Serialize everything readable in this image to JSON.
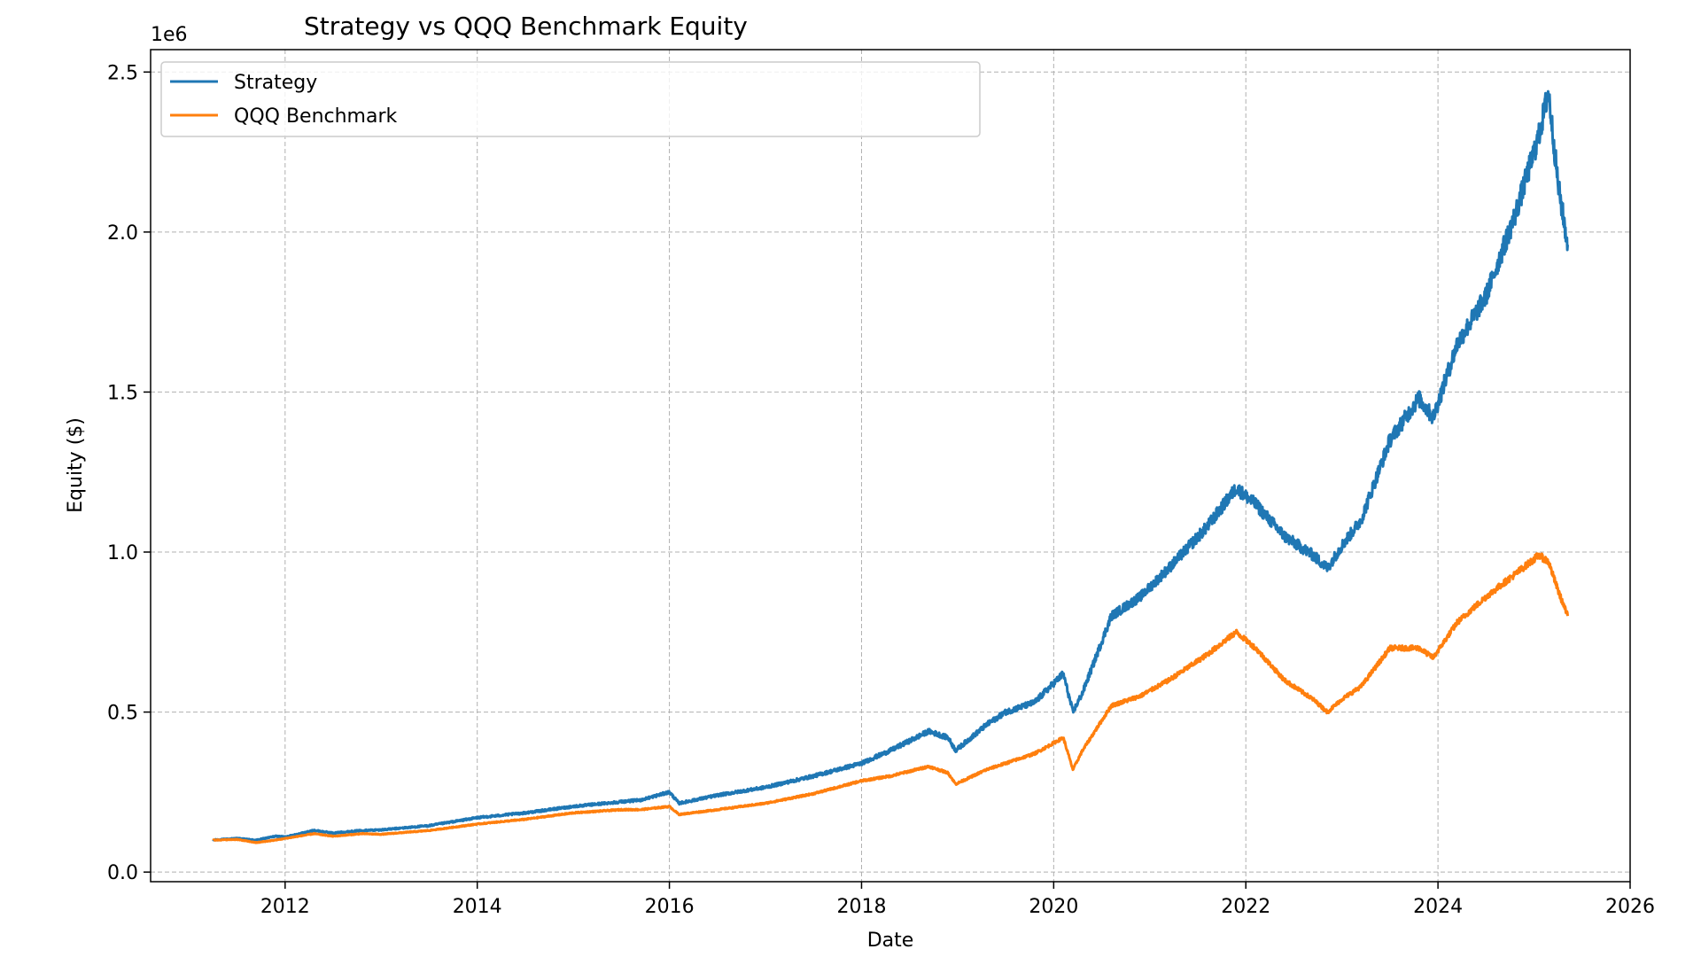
{
  "chart_data": {
    "type": "line",
    "title": "Strategy vs QQQ Benchmark Equity",
    "xlabel": "Date",
    "ylabel": "Equity ($)",
    "y_offset_text": "1e6",
    "xlim": [
      2010.6,
      2026.0
    ],
    "ylim": [
      -0.03,
      2.57
    ],
    "y_unit_scale": 1000000,
    "xticks": [
      2012,
      2014,
      2016,
      2018,
      2020,
      2022,
      2024,
      2026
    ],
    "xtick_labels": [
      "2012",
      "2014",
      "2016",
      "2018",
      "2020",
      "2022",
      "2024",
      "2026"
    ],
    "yticks": [
      0.0,
      0.5,
      1.0,
      1.5,
      2.0,
      2.5
    ],
    "ytick_labels": [
      "0.0",
      "0.5",
      "1.0",
      "1.5",
      "2.0",
      "2.5"
    ],
    "grid": true,
    "legend_position": "upper-left",
    "series": [
      {
        "name": "Strategy",
        "color": "#1f77b4",
        "points": [
          [
            2011.25,
            0.1
          ],
          [
            2011.5,
            0.105
          ],
          [
            2011.7,
            0.1
          ],
          [
            2011.9,
            0.112
          ],
          [
            2012.0,
            0.11
          ],
          [
            2012.3,
            0.13
          ],
          [
            2012.5,
            0.122
          ],
          [
            2012.8,
            0.13
          ],
          [
            2013.0,
            0.132
          ],
          [
            2013.5,
            0.145
          ],
          [
            2014.0,
            0.17
          ],
          [
            2014.5,
            0.185
          ],
          [
            2015.0,
            0.205
          ],
          [
            2015.5,
            0.22
          ],
          [
            2015.7,
            0.225
          ],
          [
            2016.0,
            0.25
          ],
          [
            2016.1,
            0.215
          ],
          [
            2016.5,
            0.24
          ],
          [
            2017.0,
            0.265
          ],
          [
            2017.5,
            0.3
          ],
          [
            2018.0,
            0.34
          ],
          [
            2018.3,
            0.38
          ],
          [
            2018.7,
            0.44
          ],
          [
            2018.9,
            0.42
          ],
          [
            2018.98,
            0.38
          ],
          [
            2019.3,
            0.46
          ],
          [
            2019.5,
            0.5
          ],
          [
            2019.8,
            0.53
          ],
          [
            2020.1,
            0.62
          ],
          [
            2020.2,
            0.5
          ],
          [
            2020.3,
            0.56
          ],
          [
            2020.6,
            0.8
          ],
          [
            2020.9,
            0.86
          ],
          [
            2021.2,
            0.95
          ],
          [
            2021.6,
            1.08
          ],
          [
            2021.9,
            1.2
          ],
          [
            2022.1,
            1.15
          ],
          [
            2022.4,
            1.05
          ],
          [
            2022.7,
            0.99
          ],
          [
            2022.85,
            0.95
          ],
          [
            2023.0,
            1.02
          ],
          [
            2023.2,
            1.1
          ],
          [
            2023.5,
            1.35
          ],
          [
            2023.8,
            1.48
          ],
          [
            2023.95,
            1.42
          ],
          [
            2024.2,
            1.65
          ],
          [
            2024.5,
            1.8
          ],
          [
            2024.8,
            2.05
          ],
          [
            2025.05,
            2.3
          ],
          [
            2025.15,
            2.44
          ],
          [
            2025.25,
            2.15
          ],
          [
            2025.35,
            1.96
          ]
        ]
      },
      {
        "name": "QQQ Benchmark",
        "color": "#ff7f0e",
        "points": [
          [
            2011.25,
            0.1
          ],
          [
            2011.5,
            0.102
          ],
          [
            2011.7,
            0.092
          ],
          [
            2011.9,
            0.1
          ],
          [
            2012.0,
            0.105
          ],
          [
            2012.3,
            0.12
          ],
          [
            2012.5,
            0.112
          ],
          [
            2012.8,
            0.12
          ],
          [
            2013.0,
            0.118
          ],
          [
            2013.5,
            0.13
          ],
          [
            2014.0,
            0.15
          ],
          [
            2014.5,
            0.165
          ],
          [
            2015.0,
            0.185
          ],
          [
            2015.5,
            0.195
          ],
          [
            2015.7,
            0.195
          ],
          [
            2016.0,
            0.205
          ],
          [
            2016.1,
            0.18
          ],
          [
            2016.5,
            0.195
          ],
          [
            2017.0,
            0.215
          ],
          [
            2017.5,
            0.245
          ],
          [
            2018.0,
            0.285
          ],
          [
            2018.3,
            0.3
          ],
          [
            2018.7,
            0.33
          ],
          [
            2018.9,
            0.31
          ],
          [
            2018.98,
            0.275
          ],
          [
            2019.3,
            0.32
          ],
          [
            2019.5,
            0.34
          ],
          [
            2019.8,
            0.37
          ],
          [
            2020.1,
            0.42
          ],
          [
            2020.2,
            0.32
          ],
          [
            2020.3,
            0.38
          ],
          [
            2020.6,
            0.52
          ],
          [
            2020.9,
            0.55
          ],
          [
            2021.2,
            0.6
          ],
          [
            2021.6,
            0.68
          ],
          [
            2021.9,
            0.75
          ],
          [
            2022.1,
            0.7
          ],
          [
            2022.4,
            0.6
          ],
          [
            2022.7,
            0.54
          ],
          [
            2022.85,
            0.5
          ],
          [
            2023.0,
            0.54
          ],
          [
            2023.2,
            0.58
          ],
          [
            2023.5,
            0.7
          ],
          [
            2023.8,
            0.7
          ],
          [
            2023.95,
            0.67
          ],
          [
            2024.2,
            0.78
          ],
          [
            2024.5,
            0.86
          ],
          [
            2024.8,
            0.93
          ],
          [
            2025.05,
            0.99
          ],
          [
            2025.15,
            0.97
          ],
          [
            2025.25,
            0.88
          ],
          [
            2025.35,
            0.8
          ]
        ]
      }
    ]
  }
}
